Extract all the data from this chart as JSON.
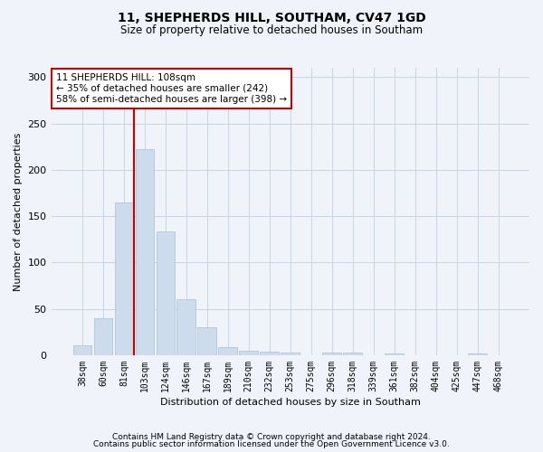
{
  "title": "11, SHEPHERDS HILL, SOUTHAM, CV47 1GD",
  "subtitle": "Size of property relative to detached houses in Southam",
  "xlabel": "Distribution of detached houses by size in Southam",
  "ylabel": "Number of detached properties",
  "bar_color": "#ccdcec",
  "bar_edgecolor": "#a8c0d4",
  "categories": [
    "38sqm",
    "60sqm",
    "81sqm",
    "103sqm",
    "124sqm",
    "146sqm",
    "167sqm",
    "189sqm",
    "210sqm",
    "232sqm",
    "253sqm",
    "275sqm",
    "296sqm",
    "318sqm",
    "339sqm",
    "361sqm",
    "382sqm",
    "404sqm",
    "425sqm",
    "447sqm",
    "468sqm"
  ],
  "values": [
    11,
    40,
    165,
    222,
    134,
    60,
    30,
    9,
    5,
    4,
    3,
    0,
    3,
    3,
    0,
    2,
    0,
    0,
    0,
    2,
    0
  ],
  "vline_index": 2.5,
  "annotation_line1": "11 SHEPHERDS HILL: 108sqm",
  "annotation_line2": "← 35% of detached houses are smaller (242)",
  "annotation_line3": "58% of semi-detached houses are larger (398) →",
  "vline_color": "#cc0000",
  "ylim": [
    0,
    310
  ],
  "footer1": "Contains HM Land Registry data © Crown copyright and database right 2024.",
  "footer2": "Contains public sector information licensed under the Open Government Licence v3.0.",
  "background_color": "#f0f4fa",
  "grid_color": "#c8d4e4",
  "title_fontsize": 10,
  "subtitle_fontsize": 8.5,
  "ylabel_fontsize": 8,
  "xlabel_fontsize": 8,
  "tick_fontsize": 7,
  "ann_fontsize": 7.5
}
